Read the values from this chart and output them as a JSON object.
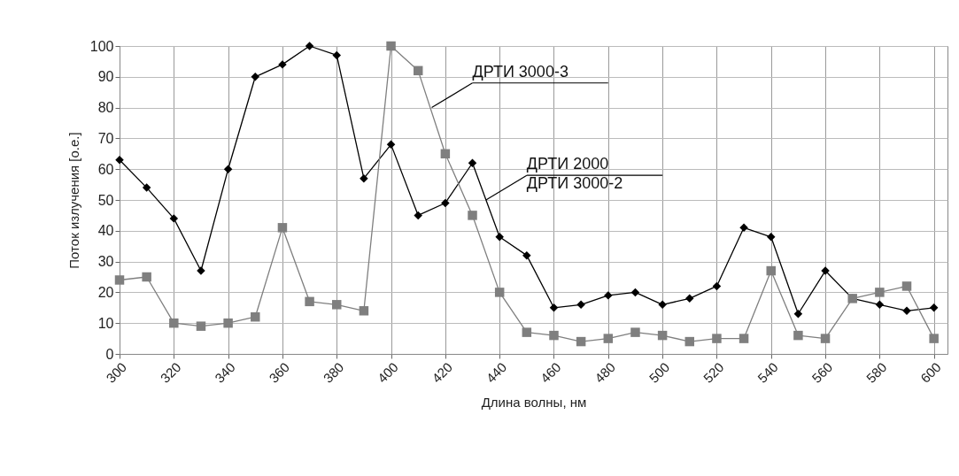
{
  "chart_data": {
    "type": "line",
    "xlabel": "Длина волны, нм",
    "ylabel": "Поток излучения [о.е.]",
    "x": [
      300,
      310,
      320,
      330,
      340,
      350,
      360,
      370,
      380,
      390,
      400,
      410,
      420,
      430,
      440,
      450,
      460,
      470,
      480,
      490,
      500,
      510,
      520,
      530,
      540,
      550,
      560,
      570,
      580,
      590,
      600
    ],
    "series": [
      {
        "color": "#000000",
        "marker": "diamond",
        "values": [
          63,
          54,
          44,
          27,
          60,
          90,
          94,
          100,
          97,
          57,
          68,
          45,
          49,
          62,
          38,
          32,
          15,
          16,
          19,
          20,
          16,
          18,
          22,
          41,
          38,
          13,
          27,
          18,
          16,
          14,
          15
        ]
      },
      {
        "color": "#7f7f7f",
        "marker": "square",
        "values": [
          24,
          25,
          10,
          9,
          10,
          12,
          41,
          17,
          16,
          14,
          100,
          92,
          65,
          45,
          20,
          7,
          6,
          4,
          5,
          7,
          6,
          4,
          5,
          5,
          27,
          6,
          5,
          18,
          20,
          22,
          5
        ]
      }
    ],
    "annotations": [
      {
        "text": "ДРТИ 3000-3",
        "x": 415,
        "y": 80
      },
      {
        "text": "ДРТИ 2000\nДРТИ 3000-2",
        "x": 435,
        "y": 50
      }
    ],
    "xlim": [
      300,
      605
    ],
    "xticks": [
      300,
      320,
      340,
      360,
      380,
      400,
      420,
      440,
      460,
      480,
      500,
      520,
      540,
      560,
      580,
      600
    ],
    "ylim": [
      0,
      100
    ],
    "yticks": [
      0,
      10,
      20,
      30,
      40,
      50,
      60,
      70,
      80,
      90,
      100
    ],
    "grid": true,
    "line_style": "solid"
  }
}
